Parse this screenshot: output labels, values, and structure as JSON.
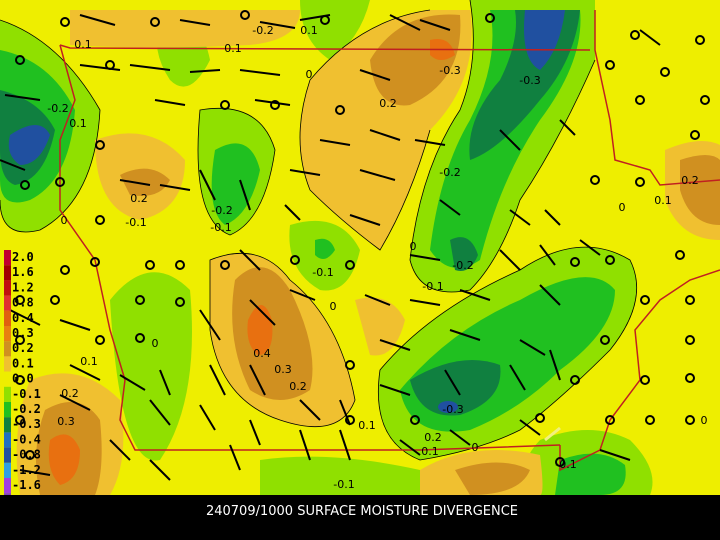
{
  "caption": "240709/1000 SURFACE MOISTURE DIVERGENCE",
  "legend": {
    "labels": [
      "2.0",
      "1.6",
      "1.2",
      "0.8",
      "0.4",
      "0.3",
      "0.2",
      "0.1",
      "0.0",
      "-0.1",
      "-0.2",
      "-0.3",
      "-0.4",
      "-0.8",
      "-1.2",
      "-1.6"
    ]
  },
  "contour_labels": [
    "0.1",
    "0.1",
    "-0.2",
    "0.1",
    "0",
    "-0.3",
    "-0.3",
    "0.2",
    "-0.2",
    "0.1",
    "-0.2",
    "0.2",
    "-0.1",
    "-0.2",
    "-0.1",
    "0",
    "0.2",
    "0.1",
    "0",
    "0",
    "-0.2",
    "-0.1",
    "-0.1",
    "0",
    "0.4",
    "0.3",
    "0.2",
    "0.1",
    "0",
    "0.2",
    "0.3",
    "-0.3",
    "0.1",
    "0.2",
    "0.1",
    "0",
    "-0.1",
    "-0.1",
    "0"
  ]
}
